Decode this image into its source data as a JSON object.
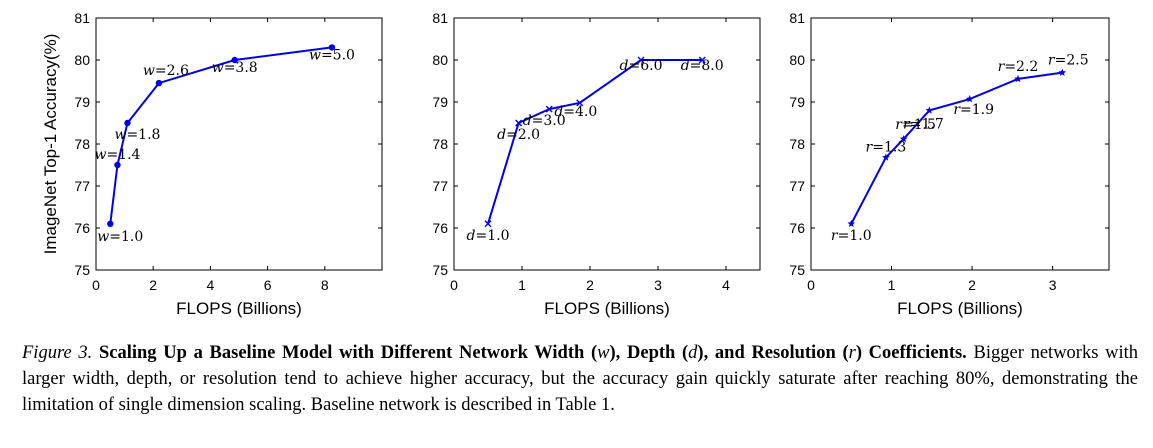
{
  "chart_data": [
    {
      "type": "line",
      "xlabel": "FLOPS (Billions)",
      "ylabel": "ImageNet Top-1 Accuracy(%)",
      "xlim": [
        0,
        10
      ],
      "ylim": [
        75,
        81
      ],
      "xticks": [
        0,
        2,
        4,
        6,
        8
      ],
      "yticks": [
        75,
        76,
        77,
        78,
        79,
        80,
        81
      ],
      "grid": false,
      "marker": "circle",
      "color": "#0000ee",
      "series": [
        {
          "x": [
            0.5,
            0.75,
            1.1,
            2.2,
            4.85,
            8.25
          ],
          "y": [
            76.1,
            77.5,
            78.5,
            79.45,
            80.0,
            80.3
          ],
          "labels": [
            {
              "var": "w",
              "value": "=1.0"
            },
            {
              "var": "w",
              "value": "=1.4"
            },
            {
              "var": "w",
              "value": "=1.8"
            },
            {
              "var": "w",
              "value": "=2.6"
            },
            {
              "var": "w",
              "value": "=3.8"
            },
            {
              "var": "w",
              "value": "=5.0"
            }
          ]
        }
      ]
    },
    {
      "type": "line",
      "xlabel": "FLOPS (Billions)",
      "ylabel": "",
      "xlim": [
        0,
        4.5
      ],
      "ylim": [
        75,
        81
      ],
      "xticks": [
        0,
        1,
        2,
        3,
        4
      ],
      "yticks": [
        75,
        76,
        77,
        78,
        79,
        80,
        81
      ],
      "grid": false,
      "marker": "x",
      "color": "#0000ee",
      "series": [
        {
          "x": [
            0.5,
            0.95,
            1.4,
            1.85,
            2.75,
            3.65
          ],
          "y": [
            76.1,
            78.5,
            78.83,
            78.98,
            80.0,
            80.0
          ],
          "labels": [
            {
              "var": "d",
              "value": "=1.0"
            },
            {
              "var": "d",
              "value": "=2.0"
            },
            {
              "var": "d",
              "value": "=3.0"
            },
            {
              "var": "d",
              "value": "=4.0"
            },
            {
              "var": "d",
              "value": "=6.0"
            },
            {
              "var": "d",
              "value": "=8.0"
            }
          ]
        }
      ]
    },
    {
      "type": "line",
      "xlabel": "FLOPS (Billions)",
      "ylabel": "",
      "xlim": [
        0,
        3.7
      ],
      "ylim": [
        75,
        81
      ],
      "xticks": [
        0,
        1,
        2,
        3
      ],
      "yticks": [
        75,
        76,
        77,
        78,
        79,
        80,
        81
      ],
      "grid": false,
      "marker": "star",
      "color": "#0000ee",
      "series": [
        {
          "x": [
            0.5,
            0.93,
            1.15,
            1.47,
            1.97,
            2.57,
            3.12
          ],
          "y": [
            76.1,
            77.68,
            78.12,
            78.8,
            79.07,
            79.55,
            79.7
          ],
          "labels": [
            {
              "var": "r",
              "value": "=1.0"
            },
            {
              "var": "r",
              "value": "=1.3"
            },
            {
              "var": "r",
              "value": "=1.5"
            },
            {
              "var": "r",
              "value": "=1.7"
            },
            {
              "var": "r",
              "value": "=1.9"
            },
            {
              "var": "r",
              "value": "=2.2"
            },
            {
              "var": "r",
              "value": "=2.5"
            }
          ]
        }
      ]
    }
  ],
  "caption": {
    "label": "Figure 3.",
    "title_parts": [
      {
        "text": "Scaling Up a Baseline Model with Different Network Width (",
        "italic": false
      },
      {
        "text": "w",
        "italic": true
      },
      {
        "text": "), Depth (",
        "italic": false
      },
      {
        "text": "d",
        "italic": true
      },
      {
        "text": "), and Resolution (",
        "italic": false
      },
      {
        "text": "r",
        "italic": true
      },
      {
        "text": ") Coefficients.",
        "italic": false
      }
    ],
    "body": "Bigger networks with larger width, depth, or resolution tend to achieve higher accuracy, but the accuracy gain quickly saturate after reaching 80%, demonstrating the limitation of single dimension scaling. Baseline network is described in Table 1."
  }
}
